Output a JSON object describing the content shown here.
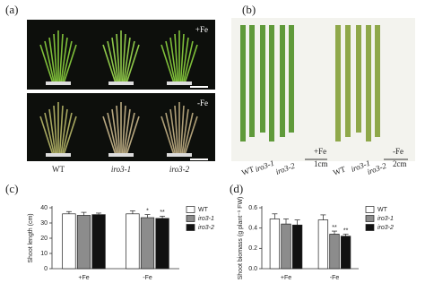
{
  "photos": {
    "genotypes": [
      "WT",
      "iro3-1",
      "iro3-2"
    ],
    "a": {
      "label": "(a)",
      "top": "+Fe",
      "bottom": "-Fe"
    },
    "b": {
      "label": "(b)",
      "left": "+Fe",
      "left_scale": "1cm",
      "right": "-Fe",
      "right_scale": "2cm"
    }
  },
  "chart_data": [
    {
      "type": "bar",
      "panel": "(c)",
      "y_label": "Shoot length (cm)",
      "categories": [
        "+Fe",
        "-Fe"
      ],
      "ylim": [
        0,
        40
      ],
      "yticks": [
        0,
        10,
        20,
        30,
        40
      ],
      "series": [
        {
          "name": "WT",
          "color": "#ffffff",
          "values": [
            36,
            36
          ],
          "errors": [
            1.5,
            2
          ],
          "significance": [
            null,
            null
          ]
        },
        {
          "name": "iro3-1",
          "color": "#8c8c8c",
          "values": [
            35,
            33.5
          ],
          "errors": [
            2,
            2
          ],
          "significance": [
            null,
            "*"
          ]
        },
        {
          "name": "iro3-2",
          "color": "#111111",
          "values": [
            35.5,
            33
          ],
          "errors": [
            1,
            1.5
          ],
          "significance": [
            null,
            "**"
          ]
        }
      ]
    },
    {
      "type": "bar",
      "panel": "(d)",
      "y_label": "Shoot biomass (g plant⁻¹ FW)",
      "categories": [
        "+Fe",
        "-Fe"
      ],
      "ylim": [
        0,
        0.6
      ],
      "yticks": [
        {
          "value": 0,
          "label": "0.0"
        },
        0.2,
        0.4,
        0.6
      ],
      "series": [
        {
          "name": "WT",
          "color": "#ffffff",
          "values": [
            0.49,
            0.48
          ],
          "errors": [
            0.05,
            0.05
          ],
          "significance": [
            null,
            null
          ]
        },
        {
          "name": "iro3-1",
          "color": "#8c8c8c",
          "values": [
            0.44,
            0.34
          ],
          "errors": [
            0.05,
            0.03
          ],
          "significance": [
            null,
            "**"
          ]
        },
        {
          "name": "iro3-2",
          "color": "#111111",
          "values": [
            0.43,
            0.32
          ],
          "errors": [
            0.05,
            0.02
          ],
          "significance": [
            null,
            "**"
          ]
        }
      ]
    }
  ]
}
